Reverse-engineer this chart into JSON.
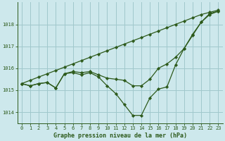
{
  "title": "Graphe pression niveau de la mer (hPa)",
  "bg_color": "#cde8ec",
  "grid_color": "#a0c8cc",
  "line_color": "#2d5a1b",
  "marker_color": "#2d5a1b",
  "xlim": [
    -0.5,
    23.5
  ],
  "ylim": [
    1013.5,
    1019.0
  ],
  "yticks": [
    1014,
    1015,
    1016,
    1017,
    1018
  ],
  "xticks": [
    0,
    1,
    2,
    3,
    4,
    5,
    6,
    7,
    8,
    9,
    10,
    11,
    12,
    13,
    14,
    15,
    16,
    17,
    18,
    19,
    20,
    21,
    22,
    23
  ],
  "series_straight": [
    1015.3,
    1015.45,
    1015.6,
    1015.75,
    1015.9,
    1016.05,
    1016.2,
    1016.35,
    1016.5,
    1016.65,
    1016.8,
    1016.95,
    1017.1,
    1017.25,
    1017.4,
    1017.55,
    1017.7,
    1017.85,
    1018.0,
    1018.15,
    1018.3,
    1018.45,
    1018.55,
    1018.65
  ],
  "series_mid": [
    1015.3,
    1015.2,
    1015.3,
    1015.35,
    1015.1,
    1015.75,
    1015.85,
    1015.8,
    1015.85,
    1015.7,
    1015.55,
    1015.5,
    1015.45,
    1015.2,
    1015.2,
    1015.5,
    1016.0,
    1016.2,
    1016.5,
    1016.9,
    1017.5,
    1018.1,
    1018.5,
    1018.6
  ],
  "series_dip": [
    1015.3,
    1015.2,
    1015.3,
    1015.35,
    1015.1,
    1015.75,
    1015.8,
    1015.7,
    1015.8,
    1015.6,
    1015.2,
    1014.85,
    1014.35,
    1013.85,
    1013.85,
    1014.65,
    1015.05,
    1015.15,
    1016.15,
    1016.9,
    1017.55,
    1018.1,
    1018.45,
    1018.6
  ]
}
